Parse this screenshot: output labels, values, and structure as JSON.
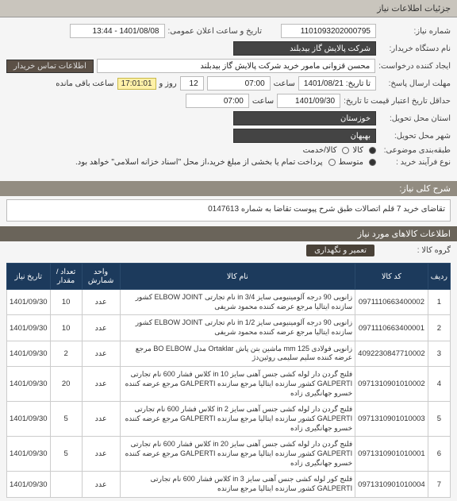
{
  "header": {
    "title": "جزئیات اطلاعات نیاز"
  },
  "fields": {
    "need_no_label": "شماره نیاز:",
    "need_no": "1101093202000795",
    "announce_label": "تاریخ و ساعت اعلان عمومی:",
    "announce": "1401/08/08 - 13:44",
    "buyer_label": "نام دستگاه خریدار:",
    "buyer": "شرکت پالایش گاز بیدبلند",
    "creator_label": "ایجاد کننده درخواست:",
    "creator": "محسن قزوانی مامور خرید شرکت پالایش گاز بیدبلند",
    "contact_btn": "اطلاعات تماس خریدار",
    "reply_deadline_label": "مهلت ارسال پاسخ:",
    "reply_deadline": "تا تاریخ: 1401/08/21",
    "hour_label": "ساعت",
    "reply_hour": "07:00",
    "days_word": "روز و",
    "days_left": "12",
    "time_left": "17:01:01",
    "time_left_tail": "ساعت باقی مانده",
    "cred_expiry_label": "حداقل تاریخ اعتبار قیمت تا تاریخ:",
    "cred_expiry": "1401/09/30",
    "cred_hour": "07:00",
    "province_label": "استان محل تحویل:",
    "province": "خوزستان",
    "city_label": "شهر محل تحویل:",
    "city": "بهبهان",
    "class_label": "طبقه‌بندی موضوعی:",
    "class_goods": "کالا",
    "class_service": "کالا/خدمت",
    "proc_label": "نوع فرآیند خرید :",
    "proc_mid": "متوسط",
    "proc_note": "پرداخت تمام یا بخشی از مبلغ خرید،از محل \"اسناد خزانه اسلامی\" خواهد بود."
  },
  "sections": {
    "main_desc_label": "شرح کلی نیاز:",
    "main_desc": "تقاضای خرید 7 قلم اتصالات طبق شرح پیوست تقاضا به شماره 0147613",
    "items_header": "اطلاعات کالاهای مورد نیاز",
    "group_label": "گروه کالا :",
    "group": "تعمیر و نگهداری"
  },
  "table": {
    "columns": [
      "ردیف",
      "کد کالا",
      "نام کالا",
      "واحد شمارش",
      "تعداد / مقدار",
      "تاریخ نیاز"
    ],
    "rows": [
      {
        "idx": "1",
        "code": "0971110663400002",
        "name": "زانویی 90 درجه آلومینیومی سایز in 3/4 نام تجارتی ELBOW JOINT کشور سازنده ایتالیا مرجع عرضه کننده محمود شریفی",
        "unit": "عدد",
        "qty": "10",
        "date": "1401/09/30"
      },
      {
        "idx": "2",
        "code": "0971110663400001",
        "name": "زانویی 90 درجه آلومینیومی سایز in 1/2 نام تجارتی ELBOW JOINT کشور سازنده ایتالیا مرجع عرضه کننده محمود شریفی",
        "unit": "عدد",
        "qty": "10",
        "date": "1401/09/30"
      },
      {
        "idx": "3",
        "code": "4092230847710002",
        "name": "زانویی فولادی mm 125 ماشین بتن پاش Ortaklar مدل BO ELBOW مرجع عرضه کننده سلیم سلیمی روئین‌دژ",
        "unit": "عدد",
        "qty": "2",
        "date": "1401/09/30"
      },
      {
        "idx": "4",
        "code": "0971310901010002",
        "name": "فلنج گردن دار لوله کشی جنس آهنی سایز in 10 کلاس فشار 600 نام تجارتی GALPERTI کشور سازنده ایتالیا مرجع سازنده GALPERTI مرجع عرضه کننده خسرو جهانگیری زاده",
        "unit": "عدد",
        "qty": "20",
        "date": "1401/09/30"
      },
      {
        "idx": "5",
        "code": "0971310901010003",
        "name": "فلنج گردن دار لوله کشی جنس آهنی سایز in 2 کلاس فشار 600 نام تجارتی GALPERTI کشور سازنده ایتالیا مرجع سازنده GALPERTI مرجع عرضه کننده خسرو جهانگیری زاده",
        "unit": "عدد",
        "qty": "5",
        "date": "1401/09/30"
      },
      {
        "idx": "6",
        "code": "0971310901010001",
        "name": "فلنج گردن دار لوله کشی جنس آهنی سایز in 20 کلاس فشار 600 نام تجارتی GALPERTI کشور سازنده ایتالیا مرجع سازنده GALPERTI مرجع عرضه کننده خسرو جهانگیری زاده",
        "unit": "عدد",
        "qty": "5",
        "date": "1401/09/30"
      },
      {
        "idx": "7",
        "code": "0971310901010004",
        "name": "فلنج کور لوله کشی جنس آهنی سایز in 3 کلاس فشار 600 نام تجارتی GALPERTI کشور سازنده ایتالیا مرجع سازنده",
        "unit": "عدد",
        "qty": "",
        "date": "1401/09/30"
      }
    ]
  }
}
